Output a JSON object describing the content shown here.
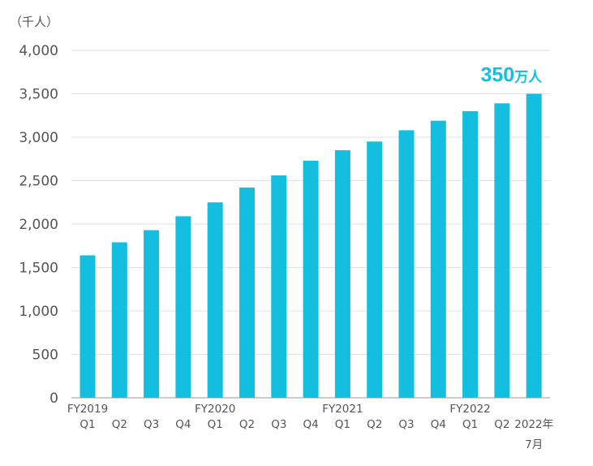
{
  "chart_data": {
    "type": "bar",
    "unit_label": "（千人）",
    "categories": [
      "Q1",
      "Q2",
      "Q3",
      "Q4",
      "Q1",
      "Q2",
      "Q3",
      "Q4",
      "Q1",
      "Q2",
      "Q3",
      "Q4",
      "Q1",
      "Q2",
      "2022年"
    ],
    "category_sublabels": [
      "",
      "",
      "",
      "",
      "",
      "",
      "",
      "",
      "",
      "",
      "",
      "",
      "",
      "",
      "7月"
    ],
    "fiscal_year_labels": [
      {
        "index": 0,
        "label": "FY2019"
      },
      {
        "index": 4,
        "label": "FY2020"
      },
      {
        "index": 8,
        "label": "FY2021"
      },
      {
        "index": 12,
        "label": "FY2022"
      }
    ],
    "values": [
      1640,
      1790,
      1930,
      2090,
      2250,
      2420,
      2560,
      2730,
      2850,
      2950,
      3080,
      3190,
      3300,
      3390,
      3500
    ],
    "ylim": [
      0,
      4000
    ],
    "yticks": [
      0,
      500,
      1000,
      1500,
      2000,
      2500,
      3000,
      3500,
      4000
    ],
    "ytick_labels": [
      "0",
      "500",
      "1,000",
      "1,500",
      "2,000",
      "2,500",
      "3,000",
      "3,500",
      "4,000"
    ],
    "grid": true,
    "annotation": {
      "number": "350",
      "unit": "万人"
    },
    "colors": {
      "bar": "#13bedf",
      "annotation": "#13bedf",
      "grid": "#e2e2e2",
      "axis": "#999999",
      "text": "#555555"
    }
  }
}
